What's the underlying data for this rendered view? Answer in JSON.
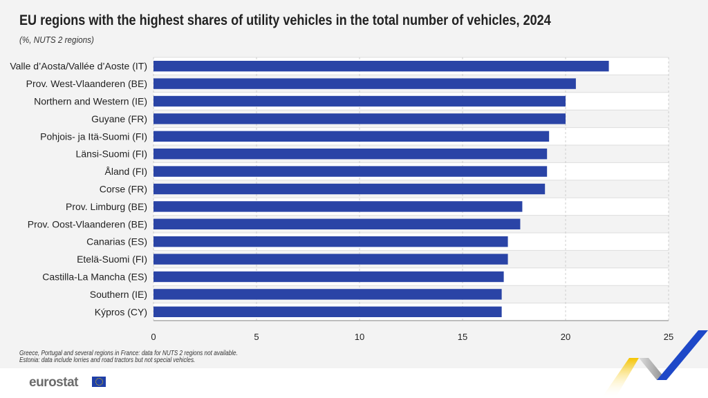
{
  "chart_data": {
    "type": "bar",
    "orientation": "horizontal",
    "title": "EU regions with the highest shares of utility vehicles in the total number of vehicles, 2024",
    "subtitle": "(%, NUTS 2 regions)",
    "categories": [
      "Valle d’Aosta/Vallée d’Aoste (IT)",
      "Prov. West-Vlaanderen (BE)",
      "Northern and Western (IE)",
      "Guyane (FR)",
      "Pohjois- ja Itä-Suomi (FI)",
      "Länsi-Suomi (FI)",
      "Åland (FI)",
      "Corse (FR)",
      "Prov. Limburg (BE)",
      "Prov. Oost-Vlaanderen (BE)",
      "Canarias (ES)",
      "Etelä-Suomi (FI)",
      "Castilla-La Mancha (ES)",
      "Southern (IE)",
      "Kýpros (CY)"
    ],
    "values": [
      22.1,
      20.5,
      20.0,
      20.0,
      19.2,
      19.1,
      19.1,
      19.0,
      17.9,
      17.8,
      17.2,
      17.2,
      17.0,
      16.9,
      16.9
    ],
    "xlim": [
      0,
      25
    ],
    "xticks": [
      "0",
      "5",
      "10",
      "15",
      "20",
      "25"
    ],
    "grid": true,
    "bar_color": "#2a44a6"
  },
  "notes": [
    "Greece, Portugal and several regions in France: data for NUTS 2 regions not available.",
    "Estonia: data include lorries and road tractors but not special vehicles."
  ],
  "logo": "eurostat"
}
